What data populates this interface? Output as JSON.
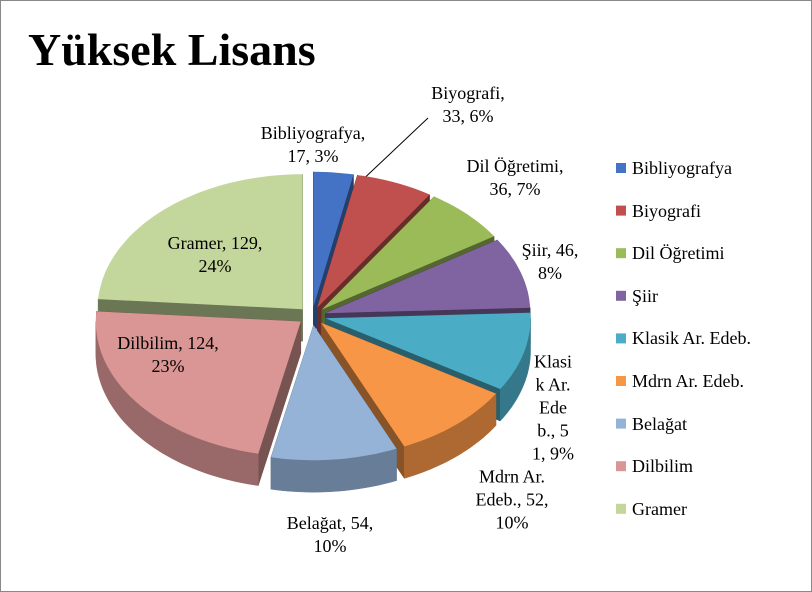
{
  "chart_data": {
    "type": "pie3d",
    "title": "Yüksek Lisans",
    "categories": [
      "Bibliyografya",
      "Biyografi",
      "Dil Öğretimi",
      "Şiir",
      "Klasik Ar. Edeb.",
      "Mdrn Ar. Edeb.",
      "Belağat",
      "Dilbilim",
      "Gramer"
    ],
    "values": [
      17,
      33,
      36,
      46,
      51,
      52,
      54,
      124,
      129
    ],
    "value_labels": [
      "Bibliyografya, 17, 3%",
      "Biyografi, 33, 6%",
      "Dil Öğretimi, 36, 7%",
      "Şiir, 46, 8%",
      "Klasik Ar. Edeb., 51, 9%",
      "Mdrn Ar. Edeb., 52, 10%",
      "Belağat, 54, 10%",
      "Dilbilim, 124, 23%",
      "Gramer, 129, 24%"
    ],
    "colors": [
      "#4472c4",
      "#c0504d",
      "#9bbb59",
      "#8064a2",
      "#4bacc6",
      "#f79646",
      "#95b3d7",
      "#d99694",
      "#c3d69b"
    ],
    "legend": "right"
  }
}
